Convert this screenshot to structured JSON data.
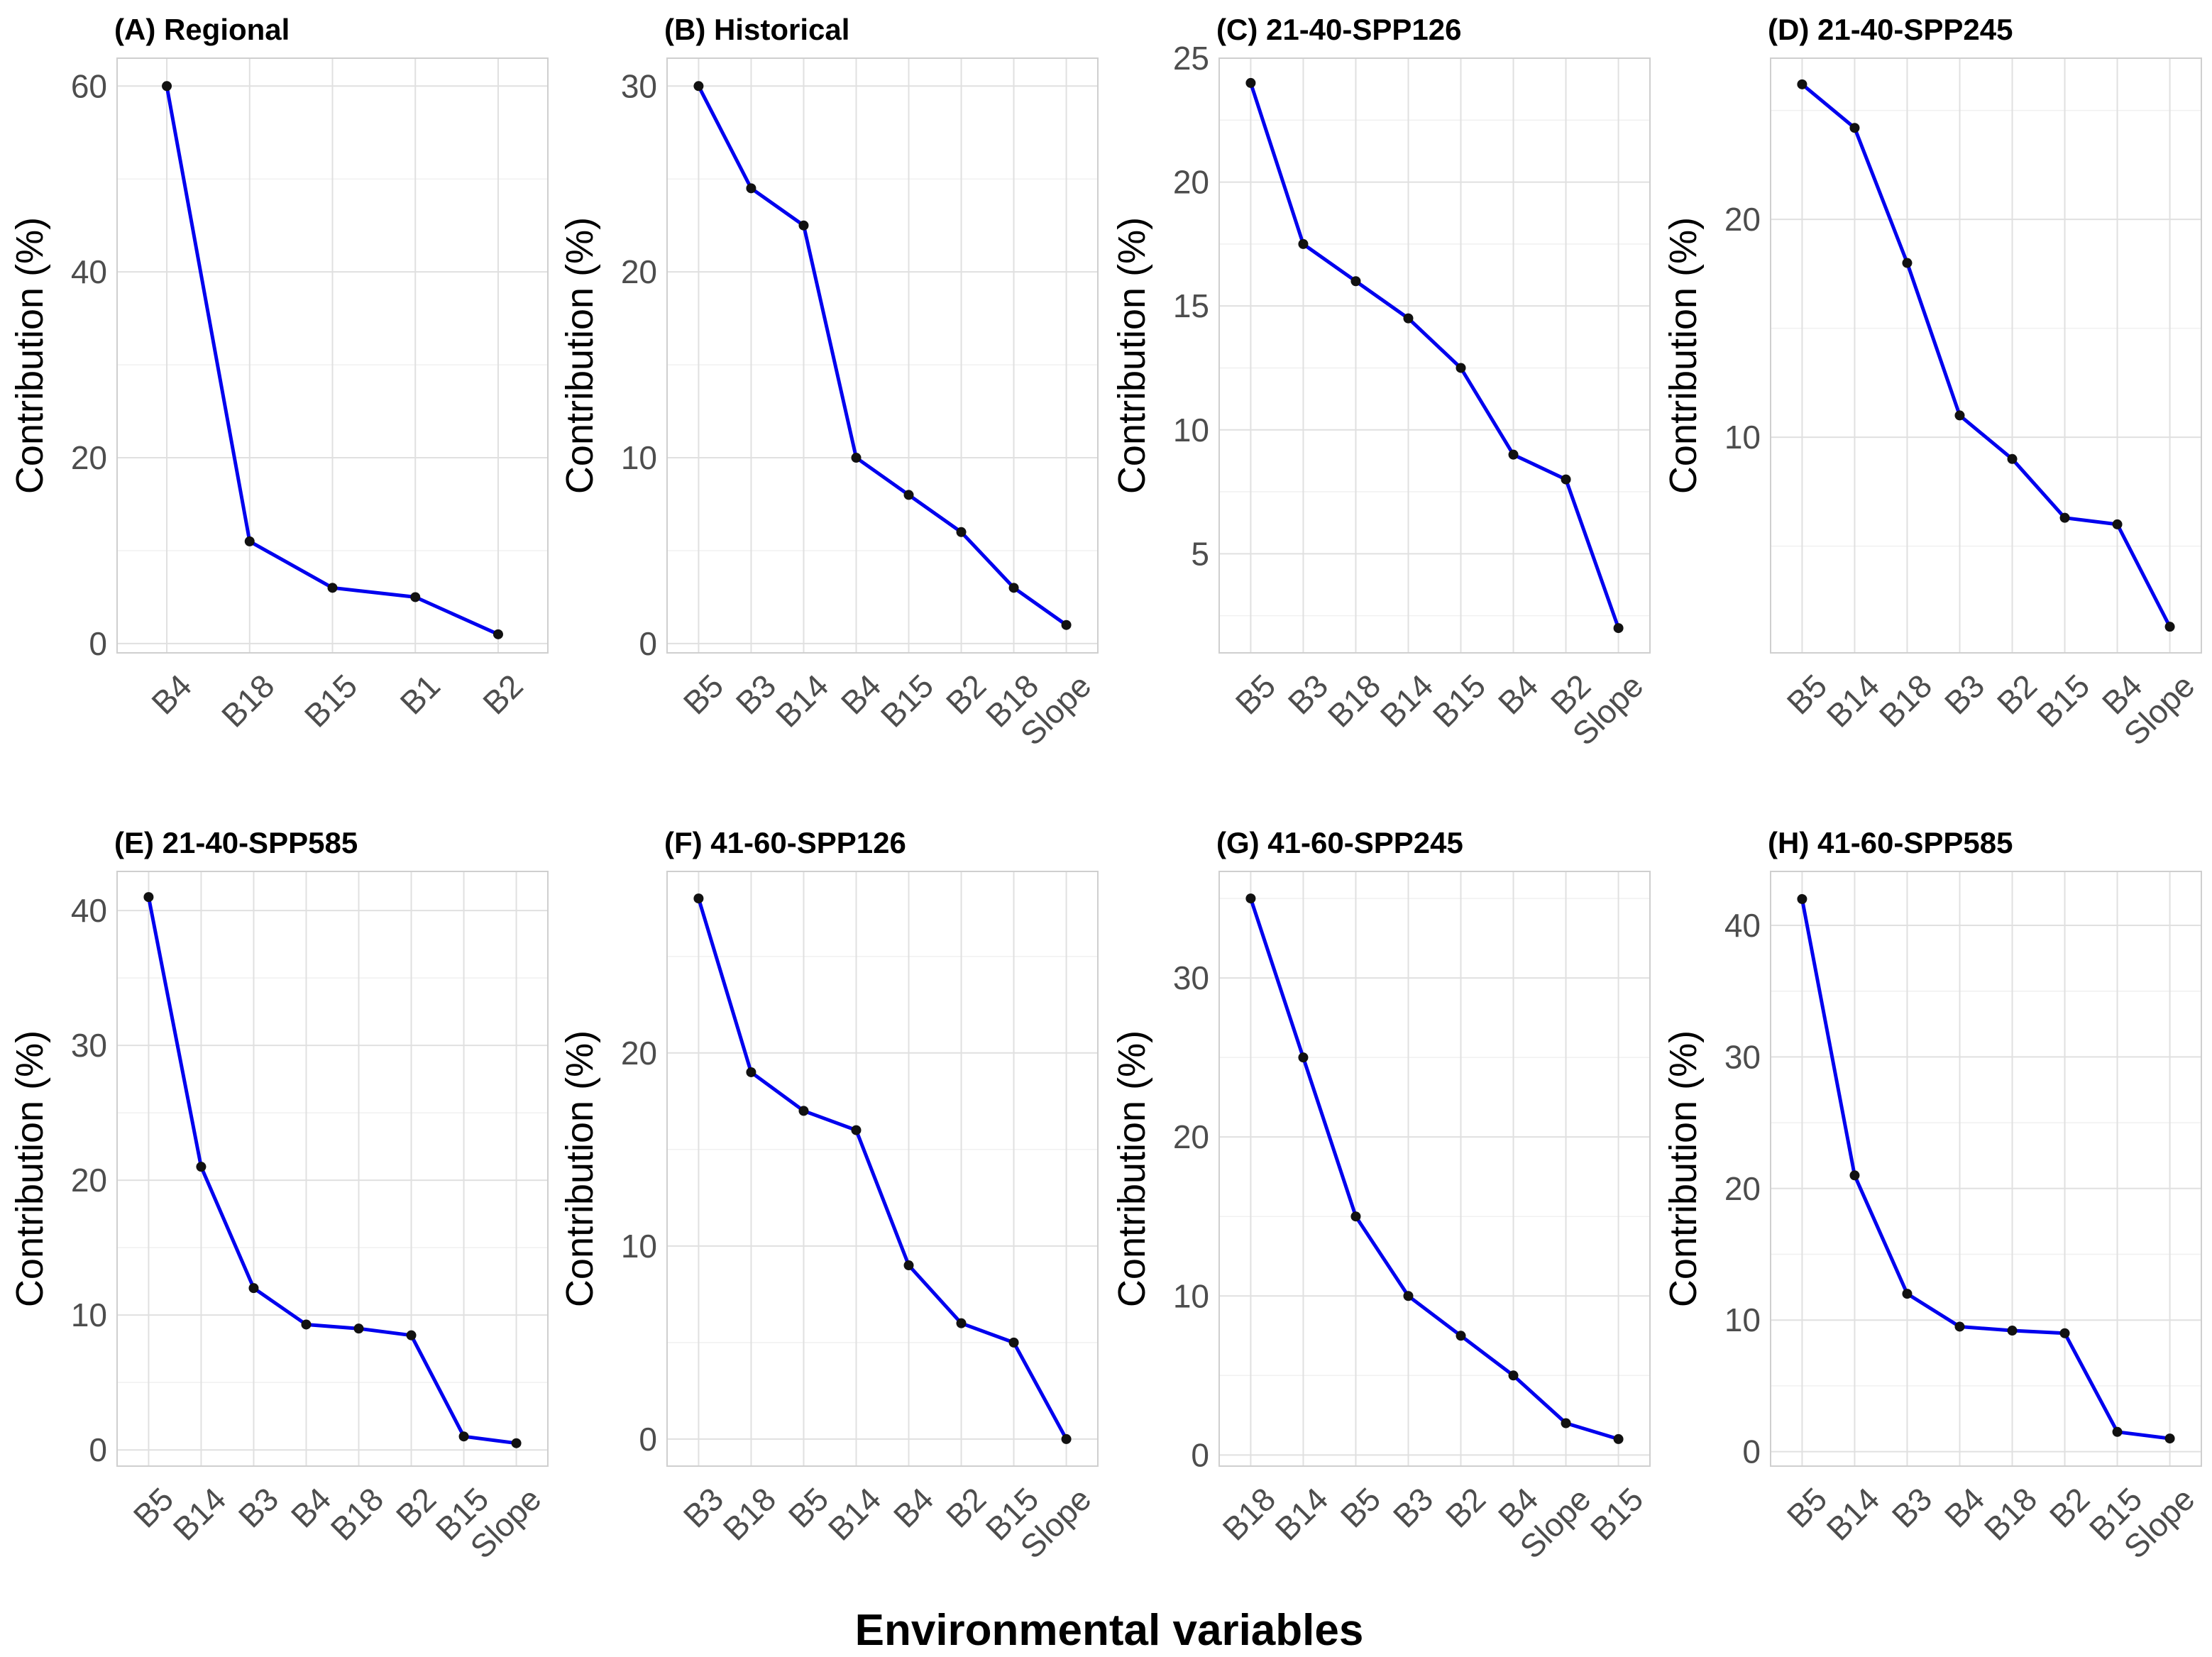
{
  "figure": {
    "x_title": "Environmental variables",
    "series_color": "#0000EE",
    "point_color": "#111111"
  },
  "chart_data": [
    {
      "type": "line",
      "title": "(A) Regional",
      "ylabel": "Contribution (%)",
      "xlabel": "",
      "categories": [
        "B4",
        "B18",
        "B15",
        "B1",
        "B2"
      ],
      "values": [
        60,
        11,
        6,
        5,
        1
      ],
      "ylim": [
        -1,
        63
      ],
      "yticks": [
        0,
        20,
        40,
        60
      ]
    },
    {
      "type": "line",
      "title": "(B) Historical",
      "ylabel": "Contribution (%)",
      "xlabel": "",
      "categories": [
        "B5",
        "B3",
        "B14",
        "B4",
        "B15",
        "B2",
        "B18",
        "Slope"
      ],
      "values": [
        30,
        24.5,
        22.5,
        10,
        8,
        6,
        3,
        1
      ],
      "ylim": [
        -0.5,
        31.5
      ],
      "yticks": [
        0,
        10,
        20,
        30
      ]
    },
    {
      "type": "line",
      "title": "(C) 21-40-SPP126",
      "ylabel": "Contribution (%)",
      "xlabel": "",
      "categories": [
        "B5",
        "B3",
        "B18",
        "B14",
        "B15",
        "B4",
        "B2",
        "Slope"
      ],
      "values": [
        24,
        17.5,
        16,
        14.5,
        12.5,
        9,
        8,
        2
      ],
      "ylim": [
        1,
        25
      ],
      "yticks": [
        5,
        10,
        15,
        20,
        25
      ]
    },
    {
      "type": "line",
      "title": "(D) 21-40-SPP245",
      "ylabel": "Contribution (%)",
      "xlabel": "",
      "categories": [
        "B5",
        "B14",
        "B18",
        "B3",
        "B2",
        "B15",
        "B4",
        "Slope"
      ],
      "values": [
        26.2,
        24.2,
        18,
        11,
        9,
        6.3,
        6,
        1.3
      ],
      "ylim": [
        0.1,
        27.4
      ],
      "yticks": [
        10,
        20
      ]
    },
    {
      "type": "line",
      "title": "(E) 21-40-SPP585",
      "ylabel": "Contribution (%)",
      "xlabel": "",
      "categories": [
        "B5",
        "B14",
        "B3",
        "B4",
        "B18",
        "B2",
        "B15",
        "Slope"
      ],
      "values": [
        41,
        21,
        12,
        9.3,
        9,
        8.5,
        1,
        0.5
      ],
      "ylim": [
        -1.2,
        42.9
      ],
      "yticks": [
        0,
        10,
        20,
        30,
        40
      ]
    },
    {
      "type": "line",
      "title": "(F) 41-60-SPP126",
      "ylabel": "Contribution (%)",
      "xlabel": "",
      "categories": [
        "B3",
        "B18",
        "B5",
        "B14",
        "B4",
        "B2",
        "B15",
        "Slope"
      ],
      "values": [
        28,
        19,
        17,
        16,
        9,
        6,
        5,
        0
      ],
      "ylim": [
        -1.4,
        29.4
      ],
      "yticks": [
        0,
        10,
        20
      ]
    },
    {
      "type": "line",
      "title": "(G) 41-60-SPP245",
      "ylabel": "Contribution (%)",
      "xlabel": "",
      "categories": [
        "B18",
        "B14",
        "B5",
        "B3",
        "B2",
        "B4",
        "Slope",
        "B15"
      ],
      "values": [
        35,
        25,
        15,
        10,
        7.5,
        5,
        2,
        1
      ],
      "ylim": [
        -0.7,
        36.7
      ],
      "yticks": [
        0,
        10,
        20,
        30
      ]
    },
    {
      "type": "line",
      "title": "(H) 41-60-SPP585",
      "ylabel": "Contribution (%)",
      "xlabel": "",
      "categories": [
        "B5",
        "B14",
        "B3",
        "B4",
        "B18",
        "B2",
        "B15",
        "Slope"
      ],
      "values": [
        42,
        21,
        12,
        9.5,
        9.2,
        9,
        1.5,
        1
      ],
      "ylim": [
        -1.1,
        44.1
      ],
      "yticks": [
        0,
        10,
        20,
        30,
        40
      ]
    }
  ]
}
